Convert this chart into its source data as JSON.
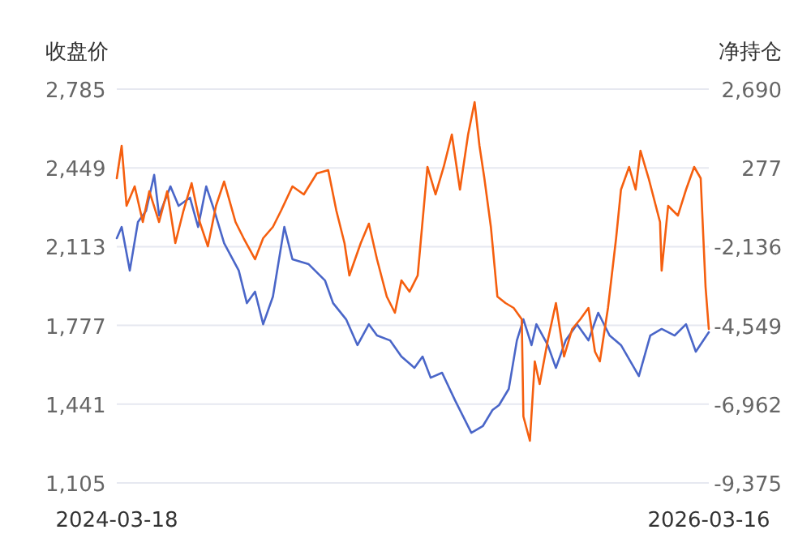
{
  "chart_data": {
    "type": "line",
    "ylabel": "收盘价",
    "y2label": "净持仓",
    "xlim": [
      "2024-03-18",
      "2026-03-16"
    ],
    "xticks": [
      "2024-03-18",
      "2026-03-16"
    ],
    "ylim": [
      1105,
      2785
    ],
    "yticks": [
      {
        "value": 1105,
        "label": "1,105"
      },
      {
        "value": 1441,
        "label": "1,441"
      },
      {
        "value": 1777,
        "label": "1,777"
      },
      {
        "value": 2113,
        "label": "2,113"
      },
      {
        "value": 2449,
        "label": "2,449"
      },
      {
        "value": 2785,
        "label": "2,785"
      }
    ],
    "y2lim": [
      -9375,
      2690
    ],
    "y2ticks": [
      {
        "value": -9375,
        "label": "-9,375"
      },
      {
        "value": -6962,
        "label": "-6,962"
      },
      {
        "value": -4549,
        "label": "-4,549"
      },
      {
        "value": -2136,
        "label": "-2,136"
      },
      277,
      {
        "value": 2690,
        "label": "2,690"
      }
    ],
    "grid": "y",
    "marker": "none",
    "line_style": "solid",
    "series": [
      {
        "color": "#4a66c8",
        "x": [
          "2024-03-18",
          "2024-03-24",
          "2024-04-03",
          "2024-04-13",
          "2024-04-23",
          "2024-05-03",
          "2024-05-09",
          "2024-05-23",
          "2024-06-02",
          "2024-06-16",
          "2024-06-26",
          "2024-07-06",
          "2024-07-16",
          "2024-07-28",
          "2024-08-15",
          "2024-08-25",
          "2024-09-04",
          "2024-09-14",
          "2024-09-26",
          "2024-10-10",
          "2024-10-20",
          "2024-11-09",
          "2024-11-29",
          "2024-12-09",
          "2024-12-25",
          "2025-01-08",
          "2025-01-22",
          "2025-02-01",
          "2025-02-17",
          "2025-03-03",
          "2025-03-19",
          "2025-03-29",
          "2025-04-08",
          "2025-04-22",
          "2025-05-08",
          "2025-05-28",
          "2025-06-11",
          "2025-06-23",
          "2025-07-01",
          "2025-07-13",
          "2025-07-23",
          "2025-07-31",
          "2025-08-10",
          "2025-08-16",
          "2025-08-30",
          "2025-09-09",
          "2025-09-21",
          "2025-10-05",
          "2025-10-19",
          "2025-10-31",
          "2025-11-14",
          "2025-11-28",
          "2025-12-20",
          "2026-01-03",
          "2026-01-17",
          "2026-02-02",
          "2026-02-16",
          "2026-02-28",
          "2026-03-16"
        ],
        "values": [
          2149,
          2197,
          2011,
          2218,
          2266,
          2419,
          2246,
          2370,
          2287,
          2322,
          2197,
          2370,
          2266,
          2128,
          2011,
          1872,
          1921,
          1782,
          1900,
          2197,
          2059,
          2038,
          1969,
          1872,
          1803,
          1693,
          1782,
          1734,
          1713,
          1644,
          1596,
          1644,
          1554,
          1575,
          1457,
          1319,
          1347,
          1416,
          1437,
          1506,
          1713,
          1803,
          1693,
          1782,
          1693,
          1596,
          1713,
          1782,
          1713,
          1831,
          1734,
          1693,
          1561,
          1734,
          1762,
          1734,
          1782,
          1665,
          1748
        ]
      },
      {
        "color": "#f55f0f",
        "axis": "y2",
        "x": [
          "2024-03-18",
          "2024-03-24",
          "2024-03-30",
          "2024-04-09",
          "2024-04-19",
          "2024-04-27",
          "2024-05-09",
          "2024-05-19",
          "2024-05-29",
          "2024-06-08",
          "2024-06-18",
          "2024-06-28",
          "2024-07-08",
          "2024-07-18",
          "2024-07-28",
          "2024-08-11",
          "2024-08-21",
          "2024-09-04",
          "2024-09-14",
          "2024-09-26",
          "2024-10-06",
          "2024-10-20",
          "2024-11-03",
          "2024-11-19",
          "2024-12-03",
          "2024-12-13",
          "2024-12-23",
          "2024-12-29",
          "2025-01-12",
          "2025-01-22",
          "2025-02-01",
          "2025-02-13",
          "2025-02-23",
          "2025-03-03",
          "2025-03-13",
          "2025-03-23",
          "2025-04-04",
          "2025-04-14",
          "2025-04-24",
          "2025-05-04",
          "2025-05-14",
          "2025-05-24",
          "2025-06-01",
          "2025-06-07",
          "2025-06-13",
          "2025-06-21",
          "2025-06-29",
          "2025-07-09",
          "2025-07-19",
          "2025-07-29",
          "2025-07-31",
          "2025-08-08",
          "2025-08-14",
          "2025-08-20",
          "2025-08-30",
          "2025-09-09",
          "2025-09-19",
          "2025-09-29",
          "2025-10-09",
          "2025-10-19",
          "2025-10-27",
          "2025-11-02",
          "2025-11-12",
          "2025-11-22",
          "2025-11-28",
          "2025-12-08",
          "2025-12-16",
          "2025-12-22",
          "2026-01-01",
          "2026-01-15",
          "2026-01-17",
          "2026-01-25",
          "2026-02-06",
          "2026-02-16",
          "2026-02-26",
          "2026-03-06",
          "2026-03-12",
          "2026-03-16"
        ],
        "values": [
          -41,
          952,
          -885,
          -289,
          -1381,
          -438,
          -1381,
          -438,
          -2027,
          -1034,
          -190,
          -1381,
          -2126,
          -885,
          -140,
          -1381,
          -1878,
          -2523,
          -1878,
          -1530,
          -1034,
          -289,
          -537,
          108,
          207,
          -1034,
          -2027,
          -3020,
          -2027,
          -1431,
          -2523,
          -3665,
          -4162,
          -3169,
          -3516,
          -3020,
          307,
          -537,
          307,
          1300,
          -388,
          1300,
          2293,
          952,
          -41,
          -1530,
          -3665,
          -3864,
          -4013,
          -4360,
          -7339,
          -8084,
          -5651,
          -6346,
          -5006,
          -3864,
          -5502,
          -4658,
          -4360,
          -4013,
          -5353,
          -5651,
          -4013,
          -1878,
          -388,
          307,
          -388,
          803,
          -41,
          -1381,
          -2871,
          -885,
          -1183,
          -388,
          307,
          -41,
          -3367,
          -4658
        ]
      }
    ]
  }
}
